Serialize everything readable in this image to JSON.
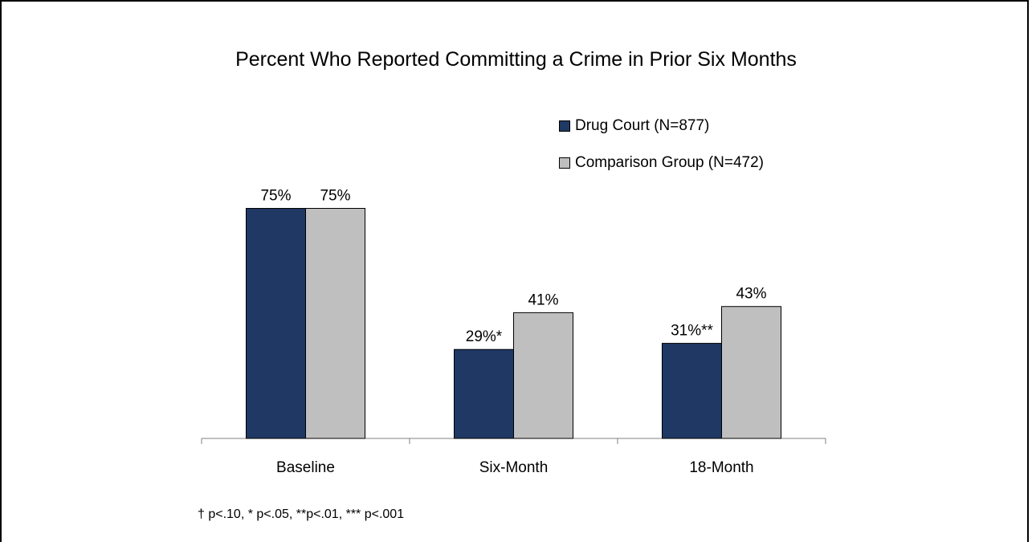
{
  "chart_data": {
    "type": "bar",
    "title": "Percent Who Reported Committing a Crime in Prior Six Months",
    "categories": [
      "Baseline",
      "Six-Month",
      "18-Month"
    ],
    "series": [
      {
        "name": "Drug Court (N=877)",
        "color": "#1f3864",
        "values": [
          75,
          29,
          31
        ],
        "labels": [
          "75%",
          "29%*",
          "31%**"
        ]
      },
      {
        "name": "Comparison Group (N=472)",
        "color": "#bfbfbf",
        "values": [
          75,
          41,
          43
        ],
        "labels": [
          "75%",
          "41%",
          "43%"
        ]
      }
    ],
    "ylim": [
      0,
      100
    ],
    "grid": false,
    "legend_position": "top-right",
    "footnote": "† p<.10,  * p<.05,  **p<.01,  *** p<.001"
  }
}
